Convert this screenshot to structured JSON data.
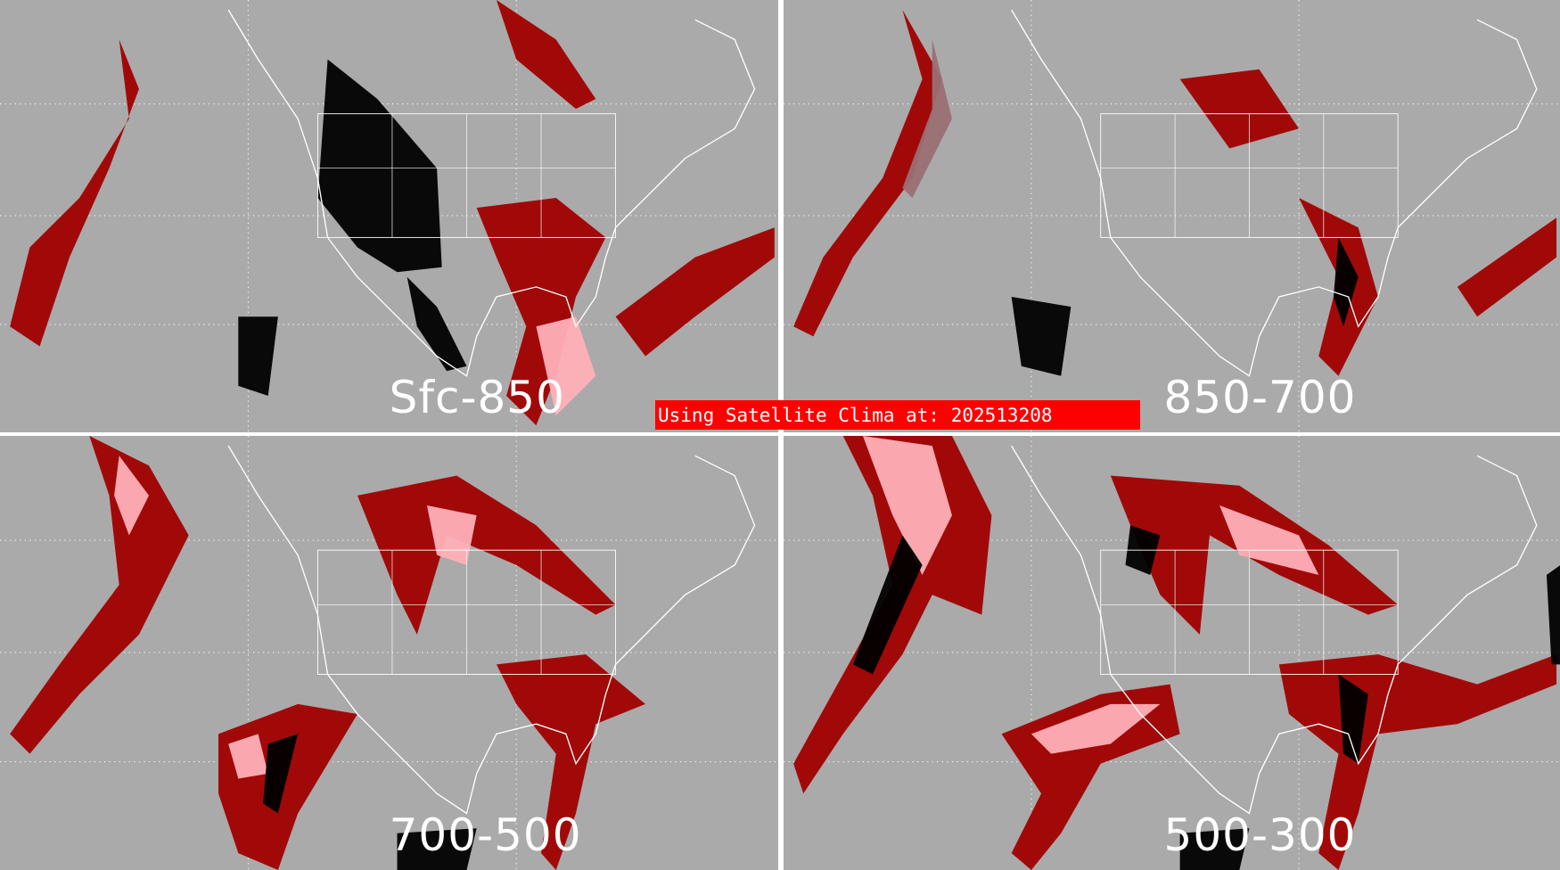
{
  "panels": [
    {
      "label": "Sfc-850"
    },
    {
      "label": "850-700"
    },
    {
      "label": "700-500"
    },
    {
      "label": "500-300"
    }
  ],
  "banner": {
    "text": "Using Satellite Clima at: 202513208"
  },
  "colors": {
    "background": "#aaaaaa",
    "dark_red": "#a00000",
    "red": "#ff0000",
    "pink": "#ffb0b8",
    "mauve": "#9a6f73",
    "black": "#000000",
    "outline": "#ffffff",
    "banner": "#ff0000"
  }
}
